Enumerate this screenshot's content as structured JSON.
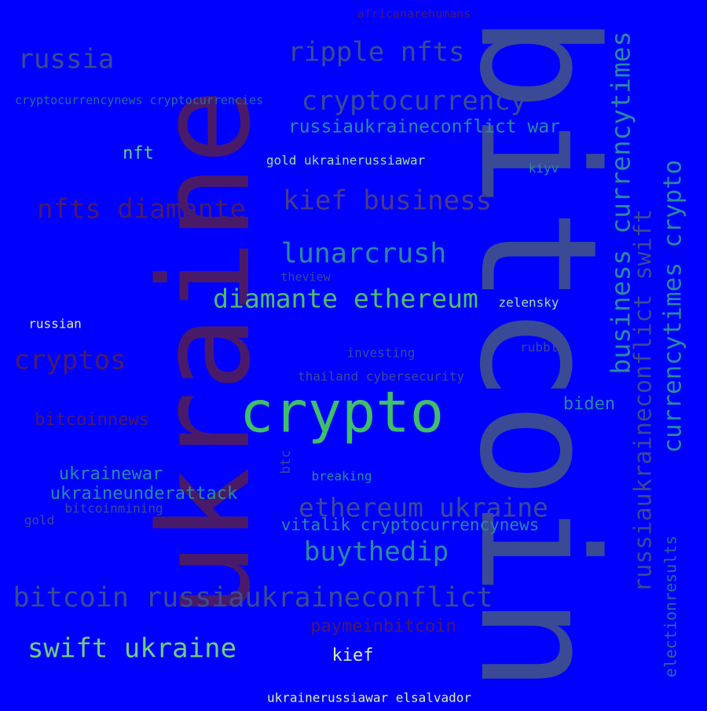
{
  "background_color": "#0000ff",
  "words": {
    "bitcoin_big": "bitcoin",
    "ukraine_big": "ukraine",
    "crypto": "crypto",
    "diamante_ethereum": "diamante ethereum",
    "lunarcrush": "lunarcrush",
    "kief_business": "kief business",
    "nfts_diamante": "nfts diamante",
    "russia": "russia",
    "ripple_nfts": "ripple nfts",
    "cryptocurrency": "cryptocurrency",
    "russiaukraineconflict_war": "russiaukraineconflict war",
    "cryptocurrencynews_cryptocurrencies": "cryptocurrencynews cryptocurrencies",
    "africanarehumans": "africanarehumans",
    "nft": "nft",
    "gold_ukrainerussiawar": "gold ukrainerussiawar",
    "kiyv": "kiyv",
    "theview": "theview",
    "zelensky": "zelensky",
    "russian": "russian",
    "investing": "investing",
    "rubble": "rubble",
    "cryptos": "cryptos",
    "thailand_cybersecurity": "thailand cybersecurity",
    "bitcoinnews": "bitcoinnews",
    "biden": "biden",
    "btc": "btc",
    "ukrainewar": "ukrainewar",
    "breaking": "breaking",
    "ukraineunderattack": "ukraineunderattack",
    "bitcoinmining": "bitcoinmining",
    "gold": "gold",
    "ethereum_ukraine": "ethereum ukraine",
    "vitalik_cryptocurrencynews": "vitalik cryptocurrencynews",
    "buythedip": "buythedip",
    "bitcoin_russiaukraineconflict": "bitcoin russiaukraineconflict",
    "paymeinbitcoin": "paymeinbitcoin",
    "swift_ukraine": "swift ukraine",
    "kief": "kief",
    "ukrainerussiawar_elsalvador": "ukrainerussiawar elsalvador",
    "business_currencytimes": "business currencytimes",
    "russiaukraineconflict_swift": "russiaukraineconflict swift",
    "currencytimes_crypto": "currencytimes crypto",
    "electionresults": "electionresults"
  }
}
